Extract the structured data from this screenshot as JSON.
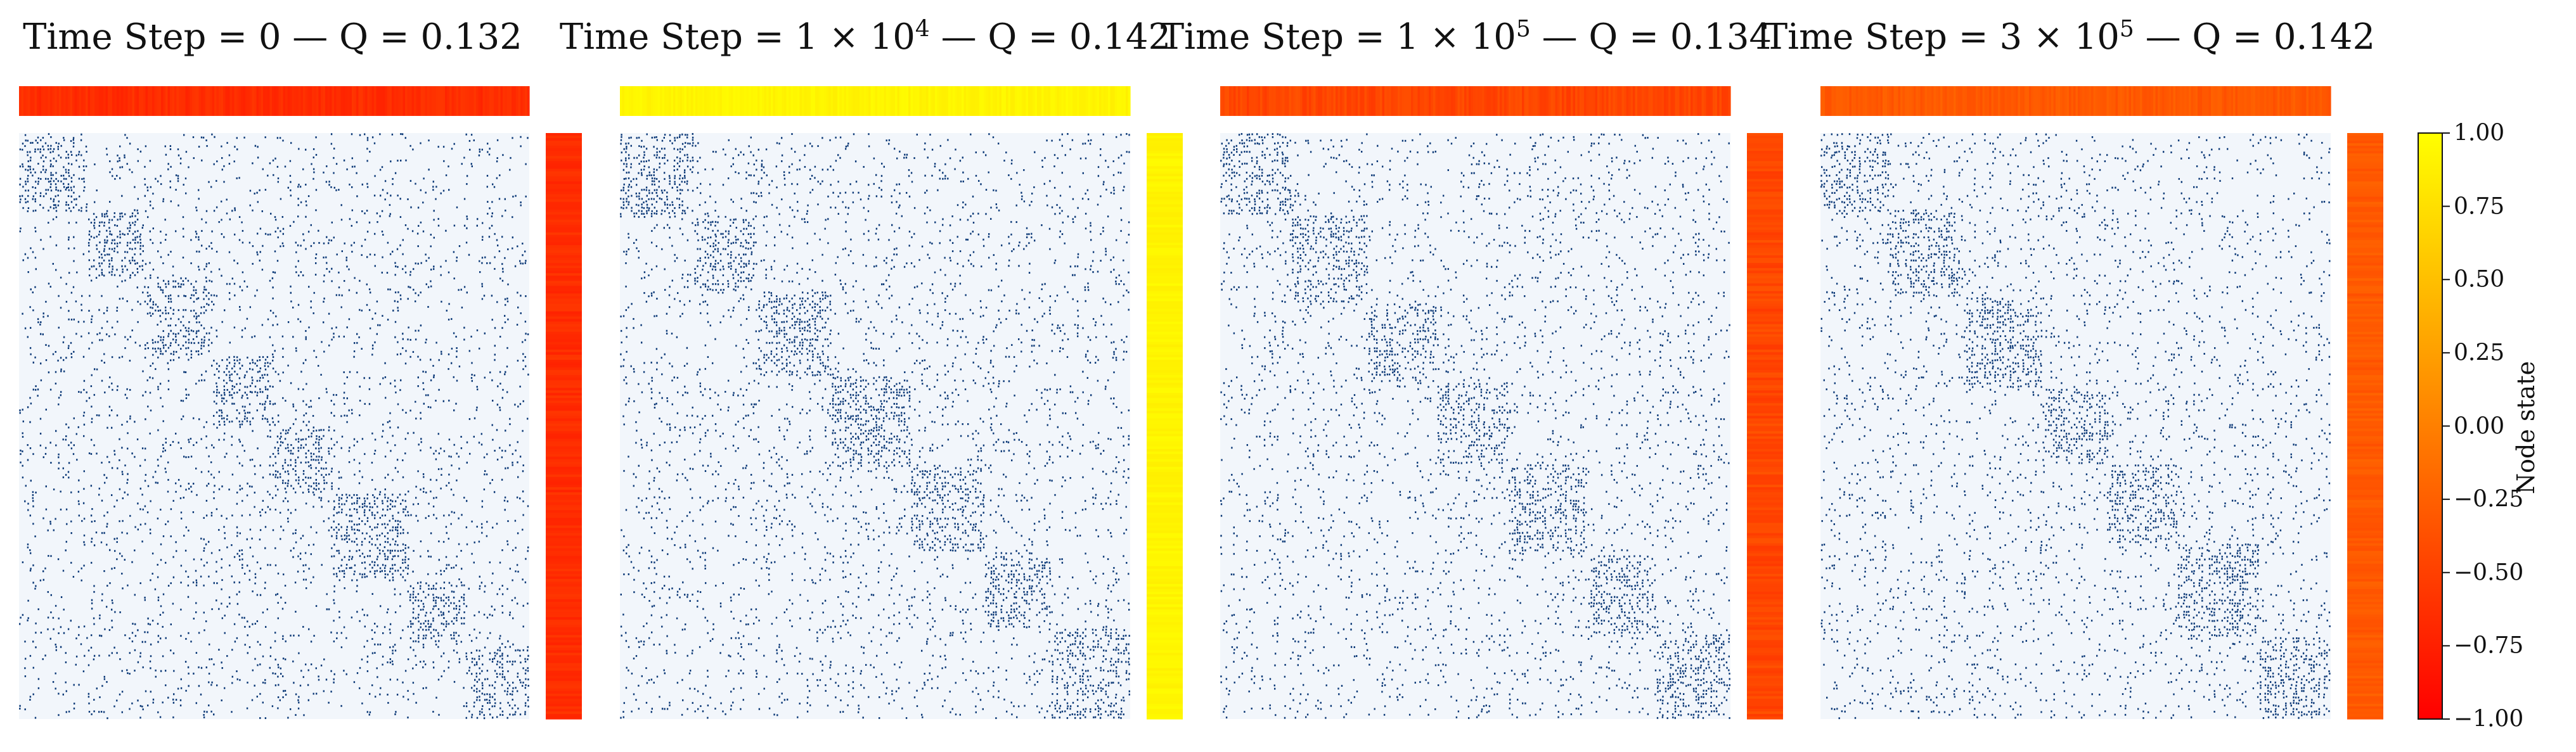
{
  "chart_data": [
    {
      "type": "heatmap",
      "panel": "adjacency",
      "title_parts": {
        "prefix": "Time Step = ",
        "mantissa": "0",
        "exponent": "",
        "sep": " — ",
        "q_label": "Q = ",
        "q_value": "0.132"
      },
      "matrix": "sparse binary adjacency (dark dots = edges)",
      "block_structure": "diagonal",
      "num_diagonal_blocks": 8,
      "top_state_bar_level": -0.65,
      "right_state_bar_level": -0.65,
      "state_variability": 0.08
    },
    {
      "type": "heatmap",
      "panel": "adjacency",
      "title_parts": {
        "prefix": "Time Step = ",
        "mantissa": "1 × 10",
        "exponent": "4",
        "sep": " — ",
        "q_label": "Q = ",
        "q_value": "0.142"
      },
      "matrix": "sparse binary adjacency (dark dots = edges)",
      "block_structure": "diagonal",
      "num_diagonal_blocks": 7,
      "top_state_bar_level": 0.92,
      "right_state_bar_level": 0.92,
      "state_variability": 0.05
    },
    {
      "type": "heatmap",
      "panel": "adjacency",
      "title_parts": {
        "prefix": "Time Step = ",
        "mantissa": "1 × 10",
        "exponent": "5",
        "sep": " — ",
        "q_label": "Q = ",
        "q_value": "0.134"
      },
      "matrix": "sparse binary adjacency (dark dots = edges)",
      "block_structure": "diagonal",
      "num_diagonal_blocks": 7,
      "top_state_bar_level": -0.45,
      "right_state_bar_level": -0.45,
      "state_variability": 0.1
    },
    {
      "type": "heatmap",
      "panel": "adjacency",
      "title_parts": {
        "prefix": "Time Step = ",
        "mantissa": "3 × 10",
        "exponent": "5",
        "sep": " — ",
        "q_label": "Q = ",
        "q_value": "0.142"
      },
      "matrix": "sparse binary adjacency (dark dots = edges)",
      "block_structure": "diagonal",
      "num_diagonal_blocks": 7,
      "top_state_bar_level": -0.3,
      "right_state_bar_level": -0.3,
      "state_variability": 0.08
    }
  ],
  "colorbar": {
    "label": "Node state",
    "vmin": -1.0,
    "vmax": 1.0,
    "ticks": [
      "1.00",
      "0.75",
      "0.50",
      "0.25",
      "0.00",
      "−0.25",
      "−0.50",
      "−0.75",
      "−1.00"
    ],
    "colormap": "autumn (red → yellow)",
    "color_low": "#ff0000",
    "color_high": "#ffff00"
  },
  "colors": {
    "matrix_background": "#f2f6fb",
    "edge_dot": "#0d3a78"
  }
}
